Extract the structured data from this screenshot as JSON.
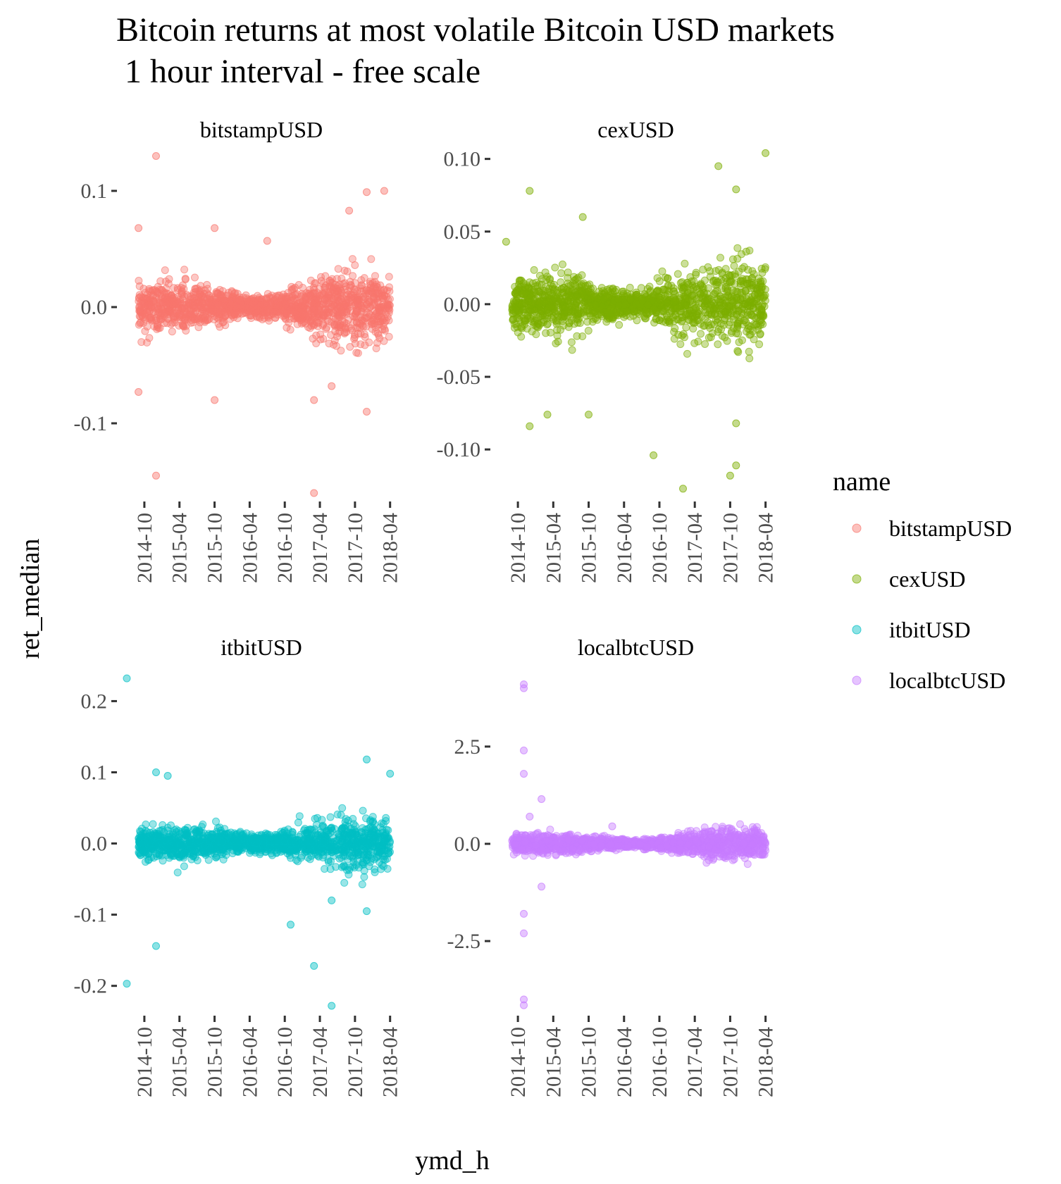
{
  "title_line1": "Bitcoin returns at most volatile Bitcoin USD markets",
  "title_line2": " 1 hour interval - free scale",
  "chart_data": {
    "type": "scatter",
    "xlabel": "ymd_h",
    "ylabel": "ret_median",
    "x_ticks": [
      "2014-10",
      "2015-04",
      "2015-10",
      "2016-04",
      "2016-10",
      "2017-04",
      "2017-10",
      "2018-04"
    ],
    "x_range": [
      "2014-07",
      "2018-05"
    ],
    "legend": {
      "title": "name",
      "position": "right"
    },
    "grid": false,
    "series": [
      {
        "name": "bitstampUSD",
        "color": "#F8766D",
        "ylim": [
          -0.16,
          0.14
        ],
        "y_ticks": [
          0.1,
          0.0,
          -0.1
        ],
        "y_tick_labels": [
          "0.1",
          "0.0",
          "-0.1"
        ],
        "band": {
          "typical_abs_return": 0.02,
          "peak_abs_return": 0.035
        },
        "outliers": [
          [
            "2014-09",
            0.068
          ],
          [
            "2014-12",
            0.13
          ],
          [
            "2014-12",
            -0.145
          ],
          [
            "2015-10",
            0.068
          ],
          [
            "2015-10",
            -0.08
          ],
          [
            "2016-07",
            0.057
          ],
          [
            "2017-03",
            -0.16
          ],
          [
            "2017-09",
            0.083
          ],
          [
            "2017-12",
            0.099
          ],
          [
            "2018-03",
            0.1
          ],
          [
            "2017-12",
            -0.09
          ],
          [
            "2017-03",
            -0.08
          ],
          [
            "2014-09",
            -0.073
          ],
          [
            "2017-06",
            -0.068
          ]
        ]
      },
      {
        "name": "cexUSD",
        "color": "#7CAE00",
        "ylim": [
          -0.13,
          0.11
        ],
        "y_ticks": [
          0.1,
          0.05,
          0.0,
          -0.05,
          -0.1
        ],
        "y_tick_labels": [
          "0.10",
          "0.05",
          "0.00",
          "-0.05",
          "-0.10"
        ],
        "band": {
          "typical_abs_return": 0.02,
          "peak_abs_return": 0.03
        },
        "outliers": [
          [
            "2014-12",
            0.078
          ],
          [
            "2014-12",
            -0.084
          ],
          [
            "2015-03",
            -0.076
          ],
          [
            "2015-10",
            -0.076
          ],
          [
            "2015-09",
            0.06
          ],
          [
            "2016-09",
            -0.104
          ],
          [
            "2017-02",
            -0.127
          ],
          [
            "2017-08",
            0.095
          ],
          [
            "2017-11",
            0.079
          ],
          [
            "2018-04",
            0.104
          ],
          [
            "2017-10",
            -0.118
          ],
          [
            "2017-11",
            -0.111
          ],
          [
            "2017-11",
            -0.082
          ],
          [
            "2014-08",
            0.043
          ]
        ]
      },
      {
        "name": "itbitUSD",
        "color": "#00BFC4",
        "ylim": [
          -0.23,
          0.24
        ],
        "y_ticks": [
          0.2,
          0.1,
          0.0,
          -0.1,
          -0.2
        ],
        "y_tick_labels": [
          "0.2",
          "0.1",
          "0.0",
          "-0.1",
          "-0.2"
        ],
        "band": {
          "typical_abs_return": 0.025,
          "peak_abs_return": 0.045
        },
        "outliers": [
          [
            "2014-07",
            0.232
          ],
          [
            "2014-07",
            -0.197
          ],
          [
            "2014-12",
            0.1
          ],
          [
            "2014-12",
            -0.144
          ],
          [
            "2015-02",
            0.095
          ],
          [
            "2016-11",
            -0.114
          ],
          [
            "2017-03",
            -0.172
          ],
          [
            "2017-06",
            -0.228
          ],
          [
            "2017-12",
            0.118
          ],
          [
            "2018-04",
            0.098
          ],
          [
            "2017-06",
            -0.08
          ],
          [
            "2017-12",
            -0.095
          ]
        ]
      },
      {
        "name": "localbtcUSD",
        "color": "#C77CFF",
        "ylim": [
          -4.2,
          4.4
        ],
        "y_ticks": [
          2.5,
          0.0,
          -2.5
        ],
        "y_tick_labels": [
          "2.5",
          "0.0",
          "-2.5"
        ],
        "band": {
          "typical_abs_return": 0.25,
          "peak_abs_return": 0.4
        },
        "outliers": [
          [
            "2014-11",
            4.1
          ],
          [
            "2014-11",
            4.0
          ],
          [
            "2014-11",
            2.4
          ],
          [
            "2014-11",
            1.8
          ],
          [
            "2014-11",
            -1.8
          ],
          [
            "2014-11",
            -2.3
          ],
          [
            "2014-11",
            -4.0
          ],
          [
            "2014-11",
            -4.15
          ],
          [
            "2015-02",
            1.15
          ],
          [
            "2015-02",
            -1.1
          ],
          [
            "2014-12",
            0.7
          ],
          [
            "2016-02",
            0.45
          ]
        ]
      }
    ]
  }
}
